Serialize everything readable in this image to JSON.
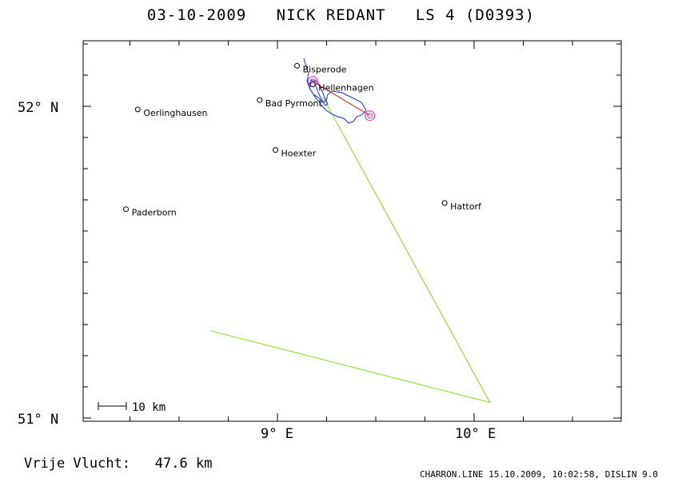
{
  "header": {
    "date": "03-10-2009",
    "pilot": "NICK REDANT",
    "glider": "LS 4 (D0393)"
  },
  "map": {
    "lat_labels": [
      "52° N",
      "51° N"
    ],
    "lon_labels": [
      "9° E",
      "10° E"
    ],
    "scale_label": "10 km",
    "towns": [
      {
        "name": "Bisperode",
        "lon": 9.1,
        "lat": 52.13
      },
      {
        "name": "Hellenhagen",
        "lon": 9.18,
        "lat": 52.07
      },
      {
        "name": "Bad Pyrmont",
        "lon": 8.91,
        "lat": 52.02
      },
      {
        "name": "Oerlinghausen",
        "lon": 8.29,
        "lat": 51.99
      },
      {
        "name": "Hoexter",
        "lon": 8.99,
        "lat": 51.86
      },
      {
        "name": "Paderborn",
        "lon": 8.23,
        "lat": 51.67
      },
      {
        "name": "Hattorf",
        "lon": 9.85,
        "lat": 51.69
      }
    ],
    "task_route": [
      {
        "lon": 9.23,
        "lat": 52.03
      },
      {
        "lon": 10.08,
        "lat": 51.05
      },
      {
        "lon": 8.66,
        "lat": 51.28
      }
    ],
    "free_flight_line": [
      {
        "lon": 9.18,
        "lat": 52.08
      },
      {
        "lon": 9.47,
        "lat": 51.97
      }
    ],
    "turnpoints": [
      {
        "lon": 9.18,
        "lat": 52.08
      },
      {
        "lon": 9.47,
        "lat": 51.97
      }
    ],
    "colors": {
      "task": "#7fdc1f",
      "track": "#1a2fd6",
      "free_line": "#e01818",
      "turnpoint": "#d020c0"
    }
  },
  "footer": {
    "free_flight_label": "Vrije Vlucht:",
    "free_flight_value": "47.6 km",
    "source": "CHARRON.LINE 15.10.2009, 10:02:58, DISLIN 9.0"
  }
}
